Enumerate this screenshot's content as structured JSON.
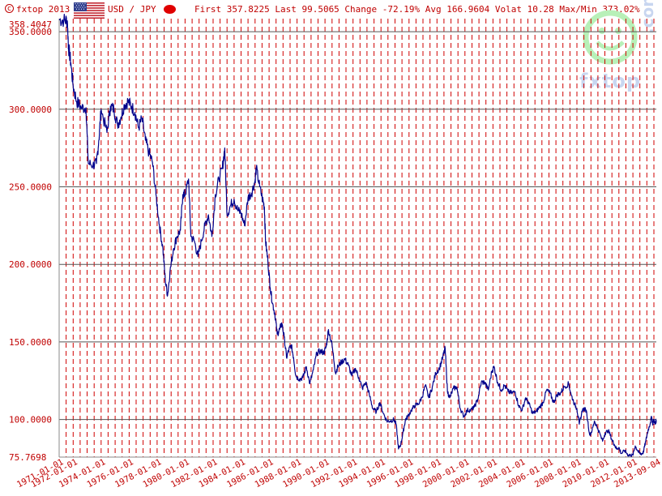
{
  "header": {
    "copyright_symbol": "c",
    "copyright": "fxtop 2013",
    "pair": "USD / JPY",
    "stats": "First 357.8225 Last 99.5065 Change -72.19% Avg 166.9604 Volat 10.28 Max/Min 373.02%"
  },
  "watermark": {
    "text": "fxtop",
    "suffix": ".com"
  },
  "icons": {
    "flag": "us-flag-icon",
    "indicator": "red-dot-icon",
    "logo": "fxtop-logo"
  },
  "colors": {
    "line": "#00008b",
    "grid_vertical": "#d00000",
    "grid_horizontal": "#555555",
    "axis_text": "#c00000",
    "background": "#ffffff",
    "watermark_green": "#b8f0b8",
    "watermark_blue": "#c8d6f0"
  },
  "chart_data": {
    "type": "line",
    "title": "",
    "xlabel": "",
    "ylabel": "",
    "x_range": [
      "1971-01-01",
      "2013-09-04"
    ],
    "ylim": [
      75.7698,
      358.4047
    ],
    "y_ticks": [
      "358.4047",
      "350.0000",
      "300.0000",
      "250.0000",
      "200.0000",
      "150.0000",
      "100.0000",
      "75.7698"
    ],
    "y_tick_values": [
      358.4047,
      350,
      300,
      250,
      200,
      150,
      100,
      75.7698
    ],
    "y_gridlines": [
      350,
      300,
      250,
      200,
      150,
      100
    ],
    "x_tick_labels": [
      "1971-01-01",
      "1972-01-01",
      "1974-01-01",
      "1976-01-01",
      "1978-01-01",
      "1980-01-01",
      "1982-01-01",
      "1984-01-01",
      "1986-01-01",
      "1988-01-01",
      "1990-01-01",
      "1992-01-01",
      "1994-01-01",
      "1996-01-01",
      "1998-01-01",
      "2000-01-01",
      "2002-01-01",
      "2004-01-01",
      "2006-01-01",
      "2008-01-01",
      "2010-01-01",
      "2012-01-01",
      "2013-09-04"
    ],
    "vertical_grid": "dashed every 6 months",
    "series": [
      {
        "values": [
          [
            "1971-01",
            357.8
          ],
          [
            "1971-05",
            357.5
          ],
          [
            "1971-08",
            357.0
          ],
          [
            "1971-09",
            340
          ],
          [
            "1971-11",
            330
          ],
          [
            "1972-01",
            315
          ],
          [
            "1972-04",
            305
          ],
          [
            "1972-08",
            301
          ],
          [
            "1972-12",
            301
          ],
          [
            "1973-02",
            265
          ],
          [
            "1973-06",
            264
          ],
          [
            "1973-09",
            265
          ],
          [
            "1973-11",
            280
          ],
          [
            "1974-01",
            300
          ],
          [
            "1974-06",
            285
          ],
          [
            "1974-09",
            302
          ],
          [
            "1974-12",
            300
          ],
          [
            "1975-03",
            290
          ],
          [
            "1975-06",
            295
          ],
          [
            "1975-09",
            303
          ],
          [
            "1975-12",
            305
          ],
          [
            "1976-03",
            302
          ],
          [
            "1976-06",
            298
          ],
          [
            "1976-09",
            288
          ],
          [
            "1976-12",
            294
          ],
          [
            "1977-03",
            280
          ],
          [
            "1977-06",
            272
          ],
          [
            "1977-09",
            266
          ],
          [
            "1977-12",
            245
          ],
          [
            "1978-03",
            225
          ],
          [
            "1978-06",
            210
          ],
          [
            "1978-08",
            190
          ],
          [
            "1978-10",
            180
          ],
          [
            "1978-12",
            195
          ],
          [
            "1979-03",
            210
          ],
          [
            "1979-06",
            218
          ],
          [
            "1979-09",
            222
          ],
          [
            "1979-11",
            245
          ],
          [
            "1980-01",
            245
          ],
          [
            "1980-04",
            255
          ],
          [
            "1980-06",
            218
          ],
          [
            "1980-09",
            215
          ],
          [
            "1980-12",
            205
          ],
          [
            "1981-03",
            215
          ],
          [
            "1981-06",
            225
          ],
          [
            "1981-09",
            232
          ],
          [
            "1981-12",
            218
          ],
          [
            "1982-03",
            245
          ],
          [
            "1982-06",
            255
          ],
          [
            "1982-09",
            262
          ],
          [
            "1982-11",
            275
          ],
          [
            "1983-01",
            232
          ],
          [
            "1983-04",
            238
          ],
          [
            "1983-07",
            242
          ],
          [
            "1983-10",
            235
          ],
          [
            "1984-01",
            233
          ],
          [
            "1984-04",
            225
          ],
          [
            "1984-07",
            243
          ],
          [
            "1984-10",
            246
          ],
          [
            "1985-01",
            254
          ],
          [
            "1985-02",
            262
          ],
          [
            "1985-05",
            250
          ],
          [
            "1985-08",
            240
          ],
          [
            "1985-09",
            237
          ],
          [
            "1985-10",
            215
          ],
          [
            "1985-12",
            202
          ],
          [
            "1986-02",
            185
          ],
          [
            "1986-04",
            175
          ],
          [
            "1986-06",
            168
          ],
          [
            "1986-08",
            155
          ],
          [
            "1986-10",
            158
          ],
          [
            "1986-12",
            162
          ],
          [
            "1987-02",
            153
          ],
          [
            "1987-04",
            140
          ],
          [
            "1987-06",
            145
          ],
          [
            "1987-08",
            148
          ],
          [
            "1987-10",
            140
          ],
          [
            "1987-12",
            128
          ],
          [
            "1988-03",
            126
          ],
          [
            "1988-06",
            127
          ],
          [
            "1988-09",
            134
          ],
          [
            "1988-12",
            123
          ],
          [
            "1989-03",
            132
          ],
          [
            "1989-06",
            143
          ],
          [
            "1989-09",
            144
          ],
          [
            "1989-12",
            143
          ],
          [
            "1990-02",
            147
          ],
          [
            "1990-04",
            158
          ],
          [
            "1990-07",
            148
          ],
          [
            "1990-10",
            130
          ],
          [
            "1990-12",
            134
          ],
          [
            "1991-03",
            137
          ],
          [
            "1991-06",
            139
          ],
          [
            "1991-09",
            135
          ],
          [
            "1991-12",
            128
          ],
          [
            "1992-03",
            133
          ],
          [
            "1992-06",
            127
          ],
          [
            "1992-09",
            120
          ],
          [
            "1992-12",
            124
          ],
          [
            "1993-03",
            116
          ],
          [
            "1993-06",
            107
          ],
          [
            "1993-09",
            105
          ],
          [
            "1993-12",
            111
          ],
          [
            "1994-03",
            104
          ],
          [
            "1994-06",
            99
          ],
          [
            "1994-09",
            99
          ],
          [
            "1994-12",
            100
          ],
          [
            "1995-02",
            97
          ],
          [
            "1995-04",
            81
          ],
          [
            "1995-06",
            84
          ],
          [
            "1995-08",
            92
          ],
          [
            "1995-10",
            100
          ],
          [
            "1995-12",
            102
          ],
          [
            "1996-03",
            106
          ],
          [
            "1996-06",
            109
          ],
          [
            "1996-09",
            110
          ],
          [
            "1996-12",
            114
          ],
          [
            "1997-03",
            122
          ],
          [
            "1997-06",
            114
          ],
          [
            "1997-09",
            121
          ],
          [
            "1997-12",
            130
          ],
          [
            "1998-03",
            133
          ],
          [
            "1998-06",
            140
          ],
          [
            "1998-08",
            146
          ],
          [
            "1998-10",
            118
          ],
          [
            "1998-12",
            114
          ],
          [
            "1999-03",
            120
          ],
          [
            "1999-06",
            121
          ],
          [
            "1999-09",
            107
          ],
          [
            "1999-12",
            102
          ],
          [
            "2000-03",
            106
          ],
          [
            "2000-06",
            106
          ],
          [
            "2000-09",
            108
          ],
          [
            "2000-12",
            113
          ],
          [
            "2001-03",
            124
          ],
          [
            "2001-06",
            124
          ],
          [
            "2001-09",
            119
          ],
          [
            "2001-12",
            131
          ],
          [
            "2002-02",
            134
          ],
          [
            "2002-05",
            124
          ],
          [
            "2002-08",
            119
          ],
          [
            "2002-11",
            122
          ],
          [
            "2003-02",
            118
          ],
          [
            "2003-05",
            117
          ],
          [
            "2003-08",
            118
          ],
          [
            "2003-11",
            109
          ],
          [
            "2004-02",
            106
          ],
          [
            "2004-05",
            114
          ],
          [
            "2004-08",
            110
          ],
          [
            "2004-11",
            104
          ],
          [
            "2005-02",
            105
          ],
          [
            "2005-05",
            108
          ],
          [
            "2005-08",
            111
          ],
          [
            "2005-11",
            119
          ],
          [
            "2006-02",
            117
          ],
          [
            "2006-05",
            111
          ],
          [
            "2006-08",
            116
          ],
          [
            "2006-11",
            117
          ],
          [
            "2007-02",
            121
          ],
          [
            "2007-06",
            123
          ],
          [
            "2007-08",
            116
          ],
          [
            "2007-11",
            110
          ],
          [
            "2008-01",
            107
          ],
          [
            "2008-03",
            97
          ],
          [
            "2008-06",
            107
          ],
          [
            "2008-09",
            106
          ],
          [
            "2008-12",
            90
          ],
          [
            "2009-02",
            93
          ],
          [
            "2009-04",
            99
          ],
          [
            "2009-07",
            94
          ],
          [
            "2009-11",
            86
          ],
          [
            "2010-01",
            91
          ],
          [
            "2010-04",
            93
          ],
          [
            "2010-07",
            87
          ],
          [
            "2010-09",
            84
          ],
          [
            "2010-11",
            81
          ],
          [
            "2011-01",
            82
          ],
          [
            "2011-03",
            78
          ],
          [
            "2011-06",
            80
          ],
          [
            "2011-09",
            77
          ],
          [
            "2011-11",
            77
          ],
          [
            "2012-01",
            77
          ],
          [
            "2012-03",
            83
          ],
          [
            "2012-05",
            80
          ],
          [
            "2012-07",
            78
          ],
          [
            "2012-09",
            78
          ],
          [
            "2012-10",
            79
          ],
          [
            "2012-12",
            86
          ],
          [
            "2013-02",
            93
          ],
          [
            "2013-04",
            98
          ],
          [
            "2013-05",
            102
          ],
          [
            "2013-06",
            97
          ],
          [
            "2013-07",
            100
          ],
          [
            "2013-08",
            97
          ],
          [
            "2013-09",
            99.5
          ]
        ]
      }
    ]
  }
}
